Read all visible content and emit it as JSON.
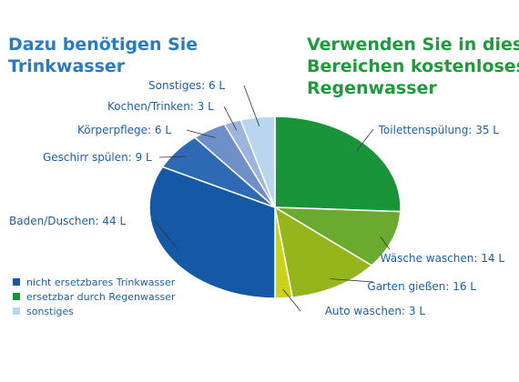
{
  "heading_left": [
    "Dazu benötigen Sie",
    "Trinkwasser"
  ],
  "heading_right": [
    "Verwenden Sie in diesen",
    "Bereichen kostenloses",
    "Regenwasser"
  ],
  "colors": {
    "heading_left": "#2a7bbf",
    "heading_right": "#1f9a3c",
    "label_text": "#1f5fa8"
  },
  "chart_data": {
    "type": "pie",
    "title": "",
    "start": "12 o'clock, clockwise",
    "unit": "L",
    "slices": [
      {
        "label": "Toilettenspülung: 35 L",
        "name": "Toilettenspülung",
        "value": 35,
        "group": "ersetzbar durch Regenwasser",
        "color": "#1a9438"
      },
      {
        "label": "Wäsche waschen: 14 L",
        "name": "Wäsche waschen",
        "value": 14,
        "group": "ersetzbar durch Regenwasser",
        "color": "#6aaa2e"
      },
      {
        "label": "Garten gießen: 16 L",
        "name": "Garten gießen",
        "value": 16,
        "group": "ersetzbar durch Regenwasser",
        "color": "#95b51c"
      },
      {
        "label": "Auto waschen: 3 L",
        "name": "Auto waschen",
        "value": 3,
        "group": "ersetzbar durch Regenwasser",
        "color": "#c9d21a"
      },
      {
        "label": "Baden/Duschen: 44 L",
        "name": "Baden/Duschen",
        "value": 44,
        "group": "nicht ersetzbares Trinkwasser",
        "color": "#1559a6"
      },
      {
        "label": "Geschirr spülen: 9 L",
        "name": "Geschirr spülen",
        "value": 9,
        "group": "nicht ersetzbares Trinkwasser",
        "color": "#2d6ab3"
      },
      {
        "label": "Körperpflege: 6 L",
        "name": "Körperpflege",
        "value": 6,
        "group": "nicht ersetzbares Trinkwasser",
        "color": "#6f8fc8"
      },
      {
        "label": "Kochen/Trinken: 3 L",
        "name": "Kochen/Trinken",
        "value": 3,
        "group": "nicht ersetzbares Trinkwasser",
        "color": "#9fb4dc"
      },
      {
        "label": "Sonstiges: 6 L",
        "name": "Sonstiges",
        "value": 6,
        "group": "sonstiges",
        "color": "#b9d6ee"
      }
    ],
    "legend": {
      "position": "bottom-left",
      "items": [
        {
          "label": "nicht ersetzbares Trinkwasser",
          "color": "#1559a6"
        },
        {
          "label": "ersetzbar durch Regenwasser",
          "color": "#1a9438"
        },
        {
          "label": "sonstiges",
          "color": "#b9d6ee"
        }
      ]
    }
  }
}
